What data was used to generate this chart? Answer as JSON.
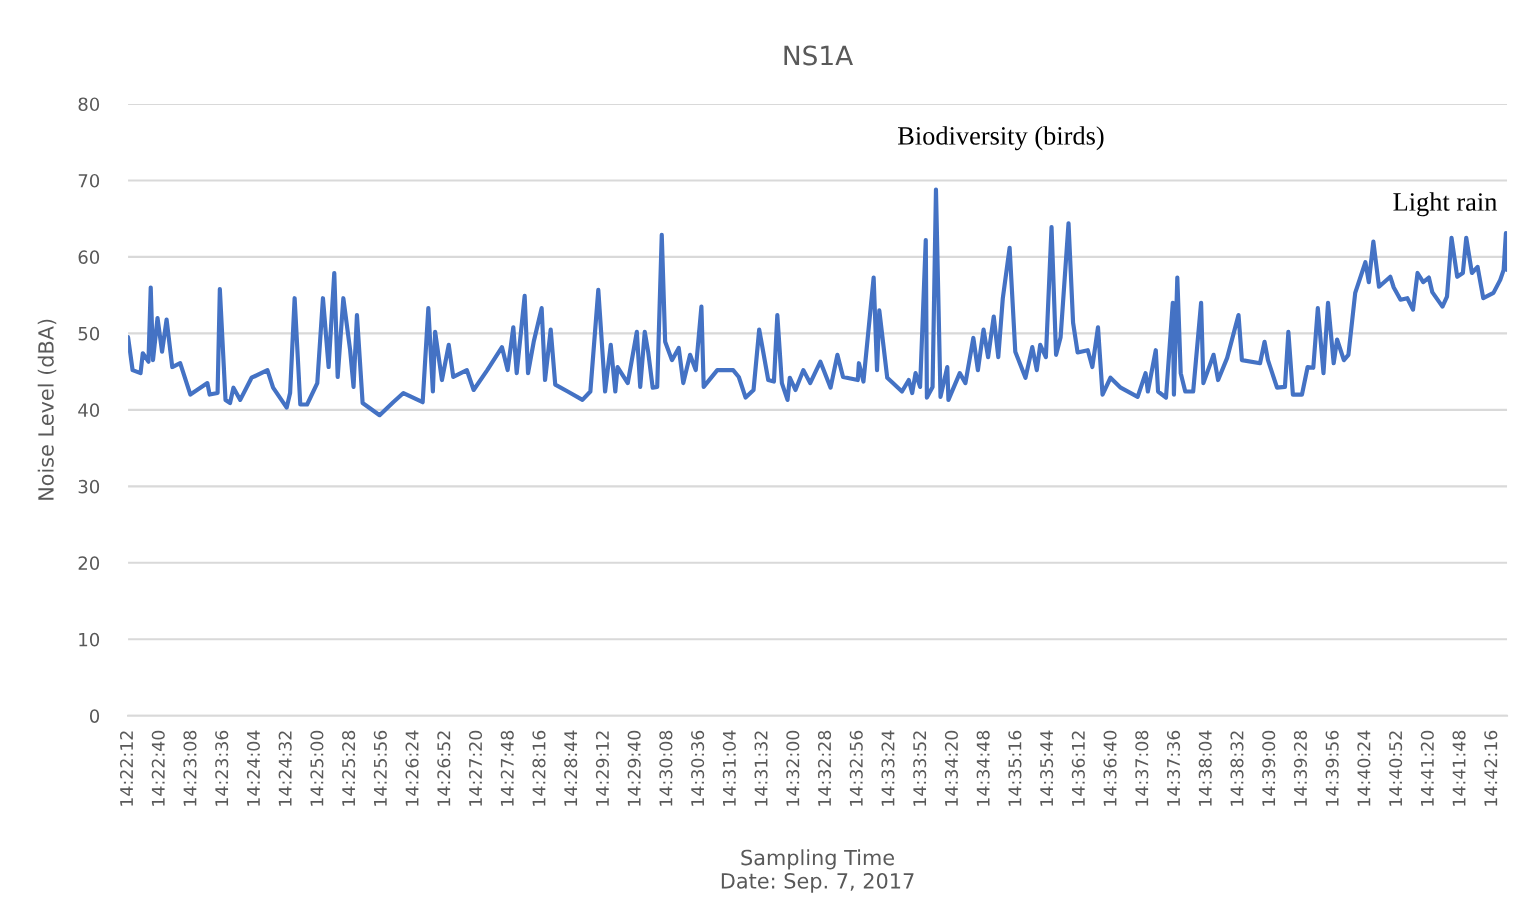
{
  "chart_data": {
    "type": "line",
    "title": "NS1A",
    "xlabel": "Sampling Time\nDate: Sep. 7, 2017",
    "ylabel": "Noise Level (dBA)",
    "x": [
      "2017-09-07T14:22:12",
      "2017-09-07T14:22:16",
      "2017-09-07T14:22:23",
      "2017-09-07T14:22:25",
      "2017-09-07T14:22:30",
      "2017-09-07T14:22:32",
      "2017-09-07T14:22:34",
      "2017-09-07T14:22:38",
      "2017-09-07T14:22:42",
      "2017-09-07T14:22:46",
      "2017-09-07T14:22:51",
      "2017-09-07T14:22:58",
      "2017-09-07T14:23:07",
      "2017-09-07T14:23:22",
      "2017-09-07T14:23:24",
      "2017-09-07T14:23:31",
      "2017-09-07T14:23:33",
      "2017-09-07T14:23:38",
      "2017-09-07T14:23:42",
      "2017-09-07T14:23:45",
      "2017-09-07T14:23:51",
      "2017-09-07T14:24:01",
      "2017-09-07T14:24:15",
      "2017-09-07T14:24:20",
      "2017-09-07T14:24:32",
      "2017-09-07T14:24:35",
      "2017-09-07T14:24:39",
      "2017-09-07T14:24:44",
      "2017-09-07T14:24:50",
      "2017-09-07T14:24:59",
      "2017-09-07T14:25:04",
      "2017-09-07T14:25:09",
      "2017-09-07T14:25:14",
      "2017-09-07T14:25:17",
      "2017-09-07T14:25:22",
      "2017-09-07T14:25:28",
      "2017-09-07T14:25:31",
      "2017-09-07T14:25:34",
      "2017-09-07T14:25:39",
      "2017-09-07T14:25:54",
      "2017-09-07T14:26:06",
      "2017-09-07T14:26:15",
      "2017-09-07T14:26:32",
      "2017-09-07T14:26:37",
      "2017-09-07T14:26:41",
      "2017-09-07T14:26:43",
      "2017-09-07T14:26:49",
      "2017-09-07T14:26:55",
      "2017-09-07T14:26:59",
      "2017-09-07T14:27:11",
      "2017-09-07T14:27:17",
      "2017-09-07T14:27:29",
      "2017-09-07T14:27:42",
      "2017-09-07T14:27:47",
      "2017-09-07T14:27:52",
      "2017-09-07T14:27:55",
      "2017-09-07T14:28:02",
      "2017-09-07T14:28:05",
      "2017-09-07T14:28:10",
      "2017-09-07T14:28:17",
      "2017-09-07T14:28:20",
      "2017-09-07T14:28:25",
      "2017-09-07T14:28:29",
      "2017-09-07T14:28:40",
      "2017-09-07T14:28:53",
      "2017-09-07T14:29:00",
      "2017-09-07T14:29:07",
      "2017-09-07T14:29:13",
      "2017-09-07T14:29:18",
      "2017-09-07T14:29:22",
      "2017-09-07T14:29:24",
      "2017-09-07T14:29:33",
      "2017-09-07T14:29:41",
      "2017-09-07T14:29:44",
      "2017-09-07T14:29:48",
      "2017-09-07T14:29:51",
      "2017-09-07T14:29:55",
      "2017-09-07T14:29:59",
      "2017-09-07T14:30:03",
      "2017-09-07T14:30:06",
      "2017-09-07T14:30:12",
      "2017-09-07T14:30:18",
      "2017-09-07T14:30:22",
      "2017-09-07T14:30:28",
      "2017-09-07T14:30:33",
      "2017-09-07T14:30:38",
      "2017-09-07T14:30:40",
      "2017-09-07T14:30:52",
      "2017-09-07T14:31:06",
      "2017-09-07T14:31:11",
      "2017-09-07T14:31:17",
      "2017-09-07T14:31:24",
      "2017-09-07T14:31:29",
      "2017-09-07T14:31:37",
      "2017-09-07T14:31:42",
      "2017-09-07T14:31:45",
      "2017-09-07T14:31:49",
      "2017-09-07T14:31:54",
      "2017-09-07T14:31:56",
      "2017-09-07T14:32:01",
      "2017-09-07T14:32:08",
      "2017-09-07T14:32:14",
      "2017-09-07T14:32:23",
      "2017-09-07T14:32:32",
      "2017-09-07T14:32:38",
      "2017-09-07T14:32:43",
      "2017-09-07T14:32:56",
      "2017-09-07T14:32:57",
      "2017-09-07T14:33:01",
      "2017-09-07T14:33:10",
      "2017-09-07T14:33:13",
      "2017-09-07T14:33:15",
      "2017-09-07T14:33:22",
      "2017-09-07T14:33:27",
      "2017-09-07T14:33:35",
      "2017-09-07T14:33:41",
      "2017-09-07T14:33:44",
      "2017-09-07T14:33:47",
      "2017-09-07T14:33:51",
      "2017-09-07T14:33:56",
      "2017-09-07T14:33:57",
      "2017-09-07T14:34:02",
      "2017-09-07T14:34:05",
      "2017-09-07T14:34:09",
      "2017-09-07T14:34:15",
      "2017-09-07T14:34:16",
      "2017-09-07T14:34:26",
      "2017-09-07T14:34:31",
      "2017-09-07T14:34:38",
      "2017-09-07T14:34:42",
      "2017-09-07T14:34:47",
      "2017-09-07T14:34:51",
      "2017-09-07T14:34:56",
      "2017-09-07T14:35:00",
      "2017-09-07T14:35:04",
      "2017-09-07T14:35:10",
      "2017-09-07T14:35:15",
      "2017-09-07T14:35:24",
      "2017-09-07T14:35:30",
      "2017-09-07T14:35:34",
      "2017-09-07T14:35:37",
      "2017-09-07T14:35:42",
      "2017-09-07T14:35:47",
      "2017-09-07T14:35:51",
      "2017-09-07T14:35:55",
      "2017-09-07T14:36:02",
      "2017-09-07T14:36:06",
      "2017-09-07T14:36:10",
      "2017-09-07T14:36:19",
      "2017-09-07T14:36:23",
      "2017-09-07T14:36:28",
      "2017-09-07T14:36:32",
      "2017-09-07T14:36:39",
      "2017-09-07T14:36:48",
      "2017-09-07T14:37:03",
      "2017-09-07T14:37:10",
      "2017-09-07T14:37:12",
      "2017-09-07T14:37:19",
      "2017-09-07T14:37:21",
      "2017-09-07T14:37:28",
      "2017-09-07T14:37:34",
      "2017-09-07T14:37:35",
      "2017-09-07T14:37:38",
      "2017-09-07T14:37:41",
      "2017-09-07T14:37:45",
      "2017-09-07T14:37:52",
      "2017-09-07T14:37:59",
      "2017-09-07T14:38:01",
      "2017-09-07T14:38:10",
      "2017-09-07T14:38:14",
      "2017-09-07T14:38:22",
      "2017-09-07T14:38:32",
      "2017-09-07T14:38:35",
      "2017-09-07T14:38:51",
      "2017-09-07T14:38:55",
      "2017-09-07T14:38:58",
      "2017-09-07T14:39:06",
      "2017-09-07T14:39:13",
      "2017-09-07T14:39:16",
      "2017-09-07T14:39:20",
      "2017-09-07T14:39:28",
      "2017-09-07T14:39:33",
      "2017-09-07T14:39:38",
      "2017-09-07T14:39:42",
      "2017-09-07T14:39:47",
      "2017-09-07T14:39:51",
      "2017-09-07T14:39:56",
      "2017-09-07T14:39:59",
      "2017-09-07T14:40:05",
      "2017-09-07T14:40:09",
      "2017-09-07T14:40:15",
      "2017-09-07T14:40:24",
      "2017-09-07T14:40:27",
      "2017-09-07T14:40:31",
      "2017-09-07T14:40:36",
      "2017-09-07T14:40:46",
      "2017-09-07T14:40:49",
      "2017-09-07T14:40:55",
      "2017-09-07T14:41:01",
      "2017-09-07T14:41:06",
      "2017-09-07T14:41:10",
      "2017-09-07T14:41:15",
      "2017-09-07T14:41:20",
      "2017-09-07T14:41:23",
      "2017-09-07T14:41:32",
      "2017-09-07T14:41:36",
      "2017-09-07T14:41:40",
      "2017-09-07T14:41:45",
      "2017-09-07T14:41:50",
      "2017-09-07T14:41:53",
      "2017-09-07T14:41:58",
      "2017-09-07T14:42:03",
      "2017-09-07T14:42:08",
      "2017-09-07T14:42:17",
      "2017-09-07T14:42:23",
      "2017-09-07T14:42:26",
      "2017-09-07T14:42:28",
      "2017-09-07T14:42:29"
    ],
    "series": [
      {
        "color": "#4472c4",
        "values": [
          49.5,
          45.2,
          44.8,
          47.4,
          46.3,
          56,
          46.5,
          52,
          47.6,
          51.8,
          45.6,
          46.1,
          42,
          43.5,
          42,
          42.2,
          55.8,
          41.3,
          40.9,
          42.9,
          41.3,
          44.2,
          45.2,
          42.9,
          40.3,
          42.2,
          54.6,
          40.7,
          40.7,
          43.5,
          54.6,
          45.6,
          57.9,
          44.3,
          54.6,
          47.8,
          43,
          52.4,
          40.9,
          39.3,
          41,
          42.2,
          41,
          53.3,
          42.4,
          50.2,
          43.9,
          48.5,
          44.3,
          45.2,
          42.6,
          45.2,
          48.2,
          45.2,
          50.8,
          44.8,
          54.9,
          44.8,
          48.9,
          53.3,
          43.9,
          50.5,
          43.3,
          42.4,
          41.3,
          42.4,
          55.7,
          42.4,
          48.5,
          42.4,
          45.6,
          43.5,
          50.2,
          43,
          50.2,
          47.6,
          42.9,
          43,
          62.9,
          48.9,
          46.5,
          48.1,
          43.5,
          47.2,
          45.2,
          53.5,
          43,
          45.2,
          45.2,
          44.3,
          41.6,
          42.6,
          50.5,
          43.9,
          43.7,
          52.4,
          43.5,
          41.3,
          44.2,
          42.6,
          45.2,
          43.5,
          46.3,
          42.9,
          47.2,
          44.3,
          43.9,
          46.1,
          43.7,
          57.3,
          45.2,
          53,
          44.2,
          43.5,
          42.4,
          43.9,
          42.2,
          44.8,
          43,
          62.2,
          41.6,
          43,
          68.8,
          41.7,
          45.6,
          41.3,
          44.8,
          43.5,
          49.4,
          45.2,
          50.5,
          46.9,
          52.2,
          46.9,
          54.6,
          61.2,
          47.6,
          44.2,
          48.2,
          45.2,
          48.5,
          46.9,
          63.9,
          47.2,
          49.5,
          64.4,
          51.4,
          47.5,
          47.8,
          45.6,
          50.8,
          42,
          44.2,
          42.9,
          41.7,
          44.8,
          42.4,
          47.8,
          42.4,
          41.6,
          54,
          42,
          57.3,
          44.8,
          42.4,
          42.4,
          54,
          43.5,
          47.2,
          43.9,
          46.8,
          52.4,
          46.5,
          46.1,
          48.9,
          46.5,
          42.9,
          43,
          50.2,
          42,
          42,
          45.6,
          45.5,
          53.3,
          44.8,
          54,
          46.1,
          49.2,
          46.5,
          47.2,
          55.3,
          59.3,
          56.7,
          62,
          56.1,
          57.4,
          56,
          54.4,
          54.6,
          53.1,
          57.9,
          56.7,
          57.3,
          55.4,
          53.5,
          54.8,
          62.5,
          57.4,
          57.9,
          62.5,
          57.9,
          58.7,
          54.6,
          55.3,
          57,
          58.3,
          63.1,
          58.3
        ]
      }
    ],
    "xlim": [
      "2017-09-07T14:22:12",
      "2017-09-07T14:42:29"
    ],
    "xticks": [
      {
        "value": "2017-09-07T14:22:12",
        "label": "14:22:12"
      },
      {
        "value": "2017-09-07T14:22:40",
        "label": "14:22:40"
      },
      {
        "value": "2017-09-07T14:23:08",
        "label": "14:23:08"
      },
      {
        "value": "2017-09-07T14:23:36",
        "label": "14:23:36"
      },
      {
        "value": "2017-09-07T14:24:04",
        "label": "14:24:04"
      },
      {
        "value": "2017-09-07T14:24:32",
        "label": "14:24:32"
      },
      {
        "value": "2017-09-07T14:25:00",
        "label": "14:25:00"
      },
      {
        "value": "2017-09-07T14:25:28",
        "label": "14:25:28"
      },
      {
        "value": "2017-09-07T14:25:56",
        "label": "14:25:56"
      },
      {
        "value": "2017-09-07T14:26:24",
        "label": "14:26:24"
      },
      {
        "value": "2017-09-07T14:26:52",
        "label": "14:26:52"
      },
      {
        "value": "2017-09-07T14:27:20",
        "label": "14:27:20"
      },
      {
        "value": "2017-09-07T14:27:48",
        "label": "14:27:48"
      },
      {
        "value": "2017-09-07T14:28:16",
        "label": "14:28:16"
      },
      {
        "value": "2017-09-07T14:28:44",
        "label": "14:28:44"
      },
      {
        "value": "2017-09-07T14:29:12",
        "label": "14:29:12"
      },
      {
        "value": "2017-09-07T14:29:40",
        "label": "14:29:40"
      },
      {
        "value": "2017-09-07T14:30:08",
        "label": "14:30:08"
      },
      {
        "value": "2017-09-07T14:30:36",
        "label": "14:30:36"
      },
      {
        "value": "2017-09-07T14:31:04",
        "label": "14:31:04"
      },
      {
        "value": "2017-09-07T14:31:32",
        "label": "14:31:32"
      },
      {
        "value": "2017-09-07T14:32:00",
        "label": "14:32:00"
      },
      {
        "value": "2017-09-07T14:32:28",
        "label": "14:32:28"
      },
      {
        "value": "2017-09-07T14:32:56",
        "label": "14:32:56"
      },
      {
        "value": "2017-09-07T14:33:24",
        "label": "14:33:24"
      },
      {
        "value": "2017-09-07T14:33:52",
        "label": "14:33:52"
      },
      {
        "value": "2017-09-07T14:34:20",
        "label": "14:34:20"
      },
      {
        "value": "2017-09-07T14:34:48",
        "label": "14:34:48"
      },
      {
        "value": "2017-09-07T14:35:16",
        "label": "14:35:16"
      },
      {
        "value": "2017-09-07T14:35:44",
        "label": "14:35:44"
      },
      {
        "value": "2017-09-07T14:36:12",
        "label": "14:36:12"
      },
      {
        "value": "2017-09-07T14:36:40",
        "label": "14:36:40"
      },
      {
        "value": "2017-09-07T14:37:08",
        "label": "14:37:08"
      },
      {
        "value": "2017-09-07T14:37:36",
        "label": "14:37:36"
      },
      {
        "value": "2017-09-07T14:38:04",
        "label": "14:38:04"
      },
      {
        "value": "2017-09-07T14:38:32",
        "label": "14:38:32"
      },
      {
        "value": "2017-09-07T14:39:00",
        "label": "14:39:00"
      },
      {
        "value": "2017-09-07T14:39:28",
        "label": "14:39:28"
      },
      {
        "value": "2017-09-07T14:39:56",
        "label": "14:39:56"
      },
      {
        "value": "2017-09-07T14:40:24",
        "label": "14:40:24"
      },
      {
        "value": "2017-09-07T14:40:52",
        "label": "14:40:52"
      },
      {
        "value": "2017-09-07T14:41:20",
        "label": "14:41:20"
      },
      {
        "value": "2017-09-07T14:41:48",
        "label": "14:41:48"
      },
      {
        "value": "2017-09-07T14:42:16",
        "label": "14:42:16"
      }
    ],
    "ylim": [
      0,
      80
    ],
    "yticks": [
      0,
      10,
      20,
      30,
      40,
      50,
      60,
      70,
      80
    ],
    "grid": "y",
    "annotations": [
      "Biodiversity (birds)",
      "Light rain"
    ]
  }
}
